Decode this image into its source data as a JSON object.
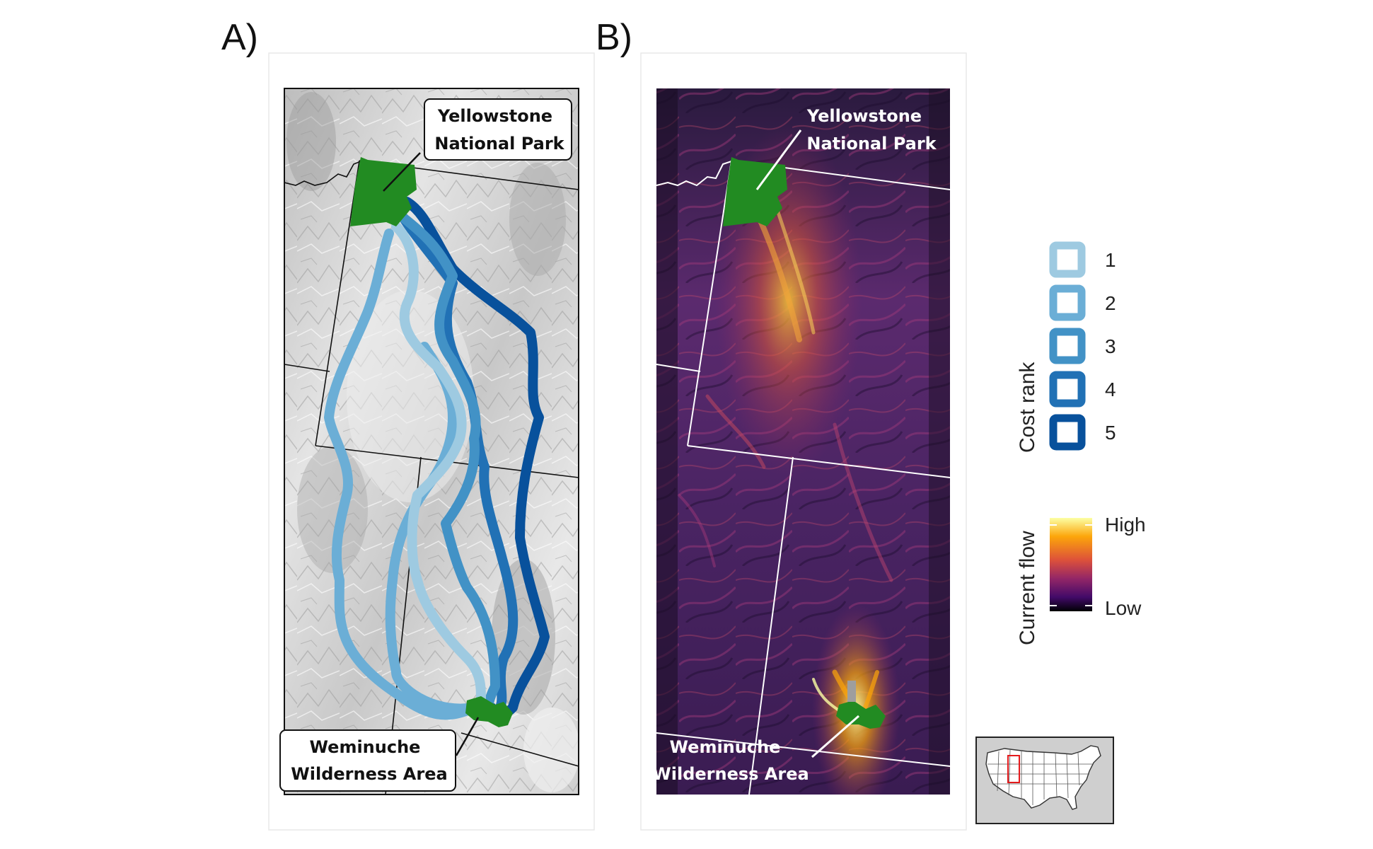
{
  "panels": {
    "a": {
      "letter": "A)",
      "label_top_line1": "Yellowstone",
      "label_top_line2": "National Park",
      "label_bottom_line1": "Weminuche",
      "label_bottom_line2": "Wilderness Area"
    },
    "b": {
      "letter": "B)",
      "label_top_line1": "Yellowstone",
      "label_top_line2": "National Park",
      "label_bottom_line1": "Weminuche",
      "label_bottom_line2": "Wilderness Area"
    }
  },
  "legend_cost": {
    "title": "Cost rank",
    "items": [
      {
        "label": "1",
        "color": "#9ecae1"
      },
      {
        "label": "2",
        "color": "#6baed6"
      },
      {
        "label": "3",
        "color": "#4292c6"
      },
      {
        "label": "4",
        "color": "#2171b5"
      },
      {
        "label": "5",
        "color": "#08519c"
      }
    ]
  },
  "legend_flow": {
    "title": "Current flow",
    "high_label": "High",
    "low_label": "Low",
    "gradient": [
      "#fcffa4",
      "#fca50a",
      "#dd513a",
      "#932667",
      "#420a68",
      "#000004"
    ]
  },
  "colors": {
    "protected_area": "#228b22",
    "hillshade": "#d4d4d4",
    "flow_background": "#3a1c52"
  },
  "inset": {
    "description_icon": "usa-locator-map-icon",
    "highlight_color": "#e31a1c"
  }
}
